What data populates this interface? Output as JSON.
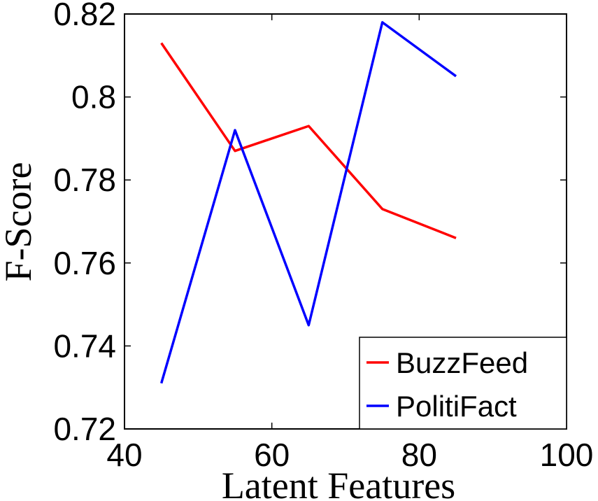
{
  "chart_data": {
    "type": "line",
    "title": "",
    "xlabel": "Latent Features",
    "ylabel": "F-Score",
    "xlim": [
      40,
      100
    ],
    "ylim": [
      0.72,
      0.82
    ],
    "xticks": [
      "40",
      "60",
      "80",
      "100"
    ],
    "yticks": [
      "0.72",
      "0.74",
      "0.76",
      "0.78",
      "0.8",
      "0.82"
    ],
    "grid": false,
    "legend_position": "bottom-right",
    "x": [
      45,
      55,
      65,
      75,
      85
    ],
    "series": [
      {
        "name": "BuzzFeed",
        "color": "#ff0000",
        "values": [
          0.813,
          0.787,
          0.793,
          0.773,
          0.766
        ]
      },
      {
        "name": "PolitiFact",
        "color": "#0000ff",
        "values": [
          0.731,
          0.792,
          0.745,
          0.818,
          0.805
        ]
      }
    ]
  }
}
